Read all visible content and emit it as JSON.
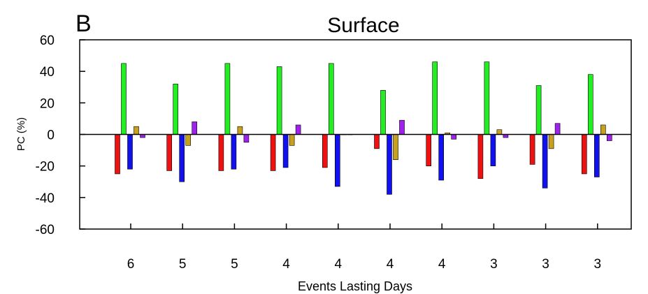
{
  "panel_label": "B",
  "chart_data": {
    "type": "bar",
    "title": "Surface",
    "xlabel": "Events Lasting Days",
    "ylabel": "PC (%)",
    "ylim": [
      -60,
      60
    ],
    "yticks": [
      60,
      40,
      20,
      0,
      -20,
      -40,
      -60
    ],
    "categories": [
      "6",
      "5",
      "5",
      "4",
      "4",
      "4",
      "4",
      "3",
      "3",
      "3"
    ],
    "grid": false,
    "legend": "none",
    "series": [
      {
        "color": "#ee1111",
        "values": [
          -25,
          -23,
          -23,
          -23,
          -21,
          -9,
          -20,
          -28,
          -19,
          -25
        ]
      },
      {
        "color": "#22ee22",
        "values": [
          45,
          32,
          45,
          43,
          45,
          28,
          46,
          46,
          31,
          38
        ]
      },
      {
        "color": "#1111ee",
        "values": [
          -22,
          -30,
          -22,
          -21,
          -33,
          -38,
          -29,
          -20,
          -34,
          -27
        ]
      },
      {
        "color": "#c8a020",
        "values": [
          5,
          -7,
          5,
          -7,
          0,
          -16,
          1,
          3,
          -9,
          6
        ]
      },
      {
        "color": "#a020ee",
        "values": [
          -2,
          8,
          -5,
          6,
          0,
          9,
          -3,
          -2,
          7,
          -4
        ]
      }
    ]
  }
}
